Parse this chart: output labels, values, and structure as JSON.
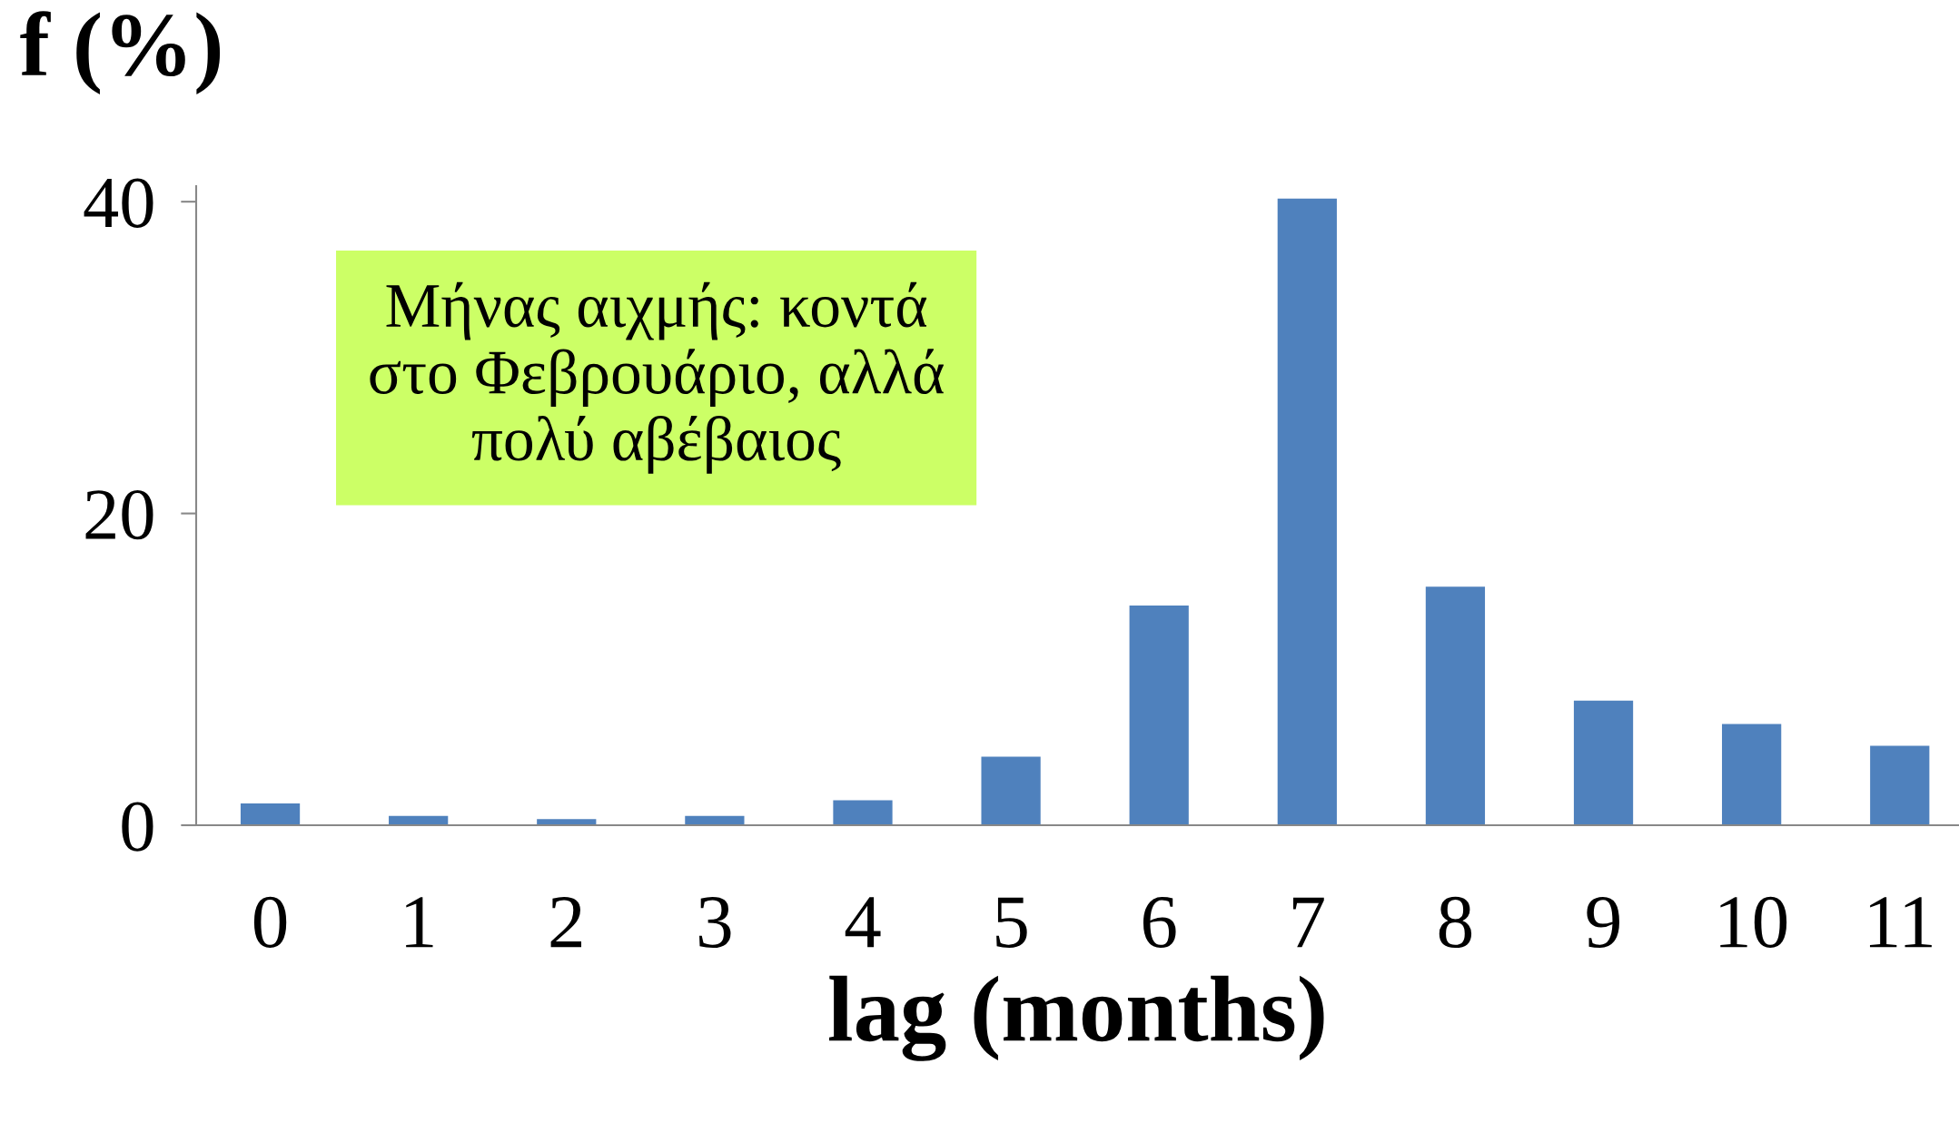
{
  "chart_data": {
    "type": "bar",
    "title": "f (%)",
    "xlabel": "lag (months)",
    "categories": [
      "0",
      "1",
      "2",
      "3",
      "4",
      "5",
      "6",
      "7",
      "8",
      "9",
      "10",
      "11"
    ],
    "values": [
      1.4,
      0.6,
      0.4,
      0.6,
      1.6,
      4.4,
      14.1,
      40.2,
      15.3,
      8.0,
      6.5,
      5.1
    ],
    "color": "#4f81bd",
    "ylim": [
      0,
      41
    ],
    "yticks": [
      0,
      20,
      40
    ],
    "grid": false,
    "legend": false,
    "annotations": [
      "Μήνας αιχμής: κοντά\nστο Φεβρουάριο, αλλά\nπολύ αβέβαιος"
    ]
  }
}
